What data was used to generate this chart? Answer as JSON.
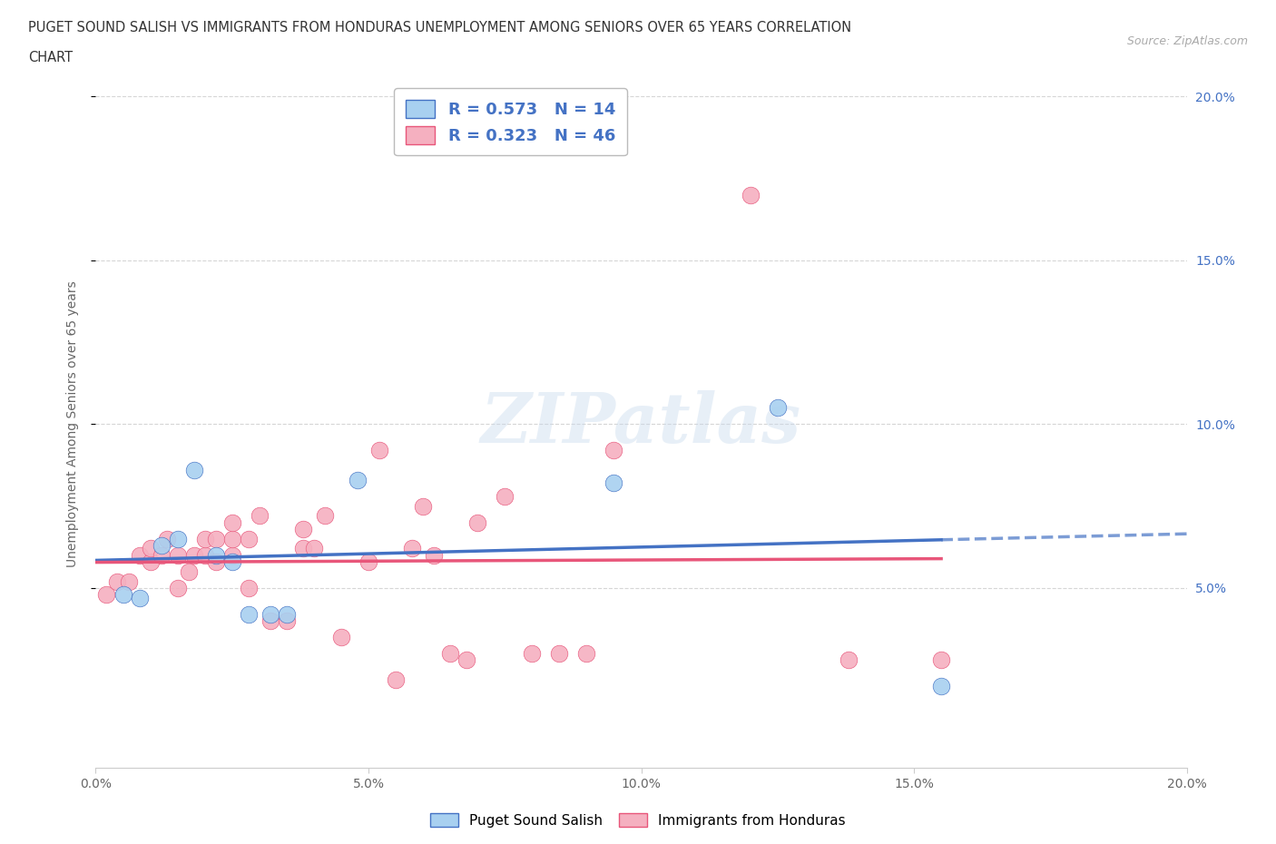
{
  "title_line1": "PUGET SOUND SALISH VS IMMIGRANTS FROM HONDURAS UNEMPLOYMENT AMONG SENIORS OVER 65 YEARS CORRELATION",
  "title_line2": "CHART",
  "source_text": "Source: ZipAtlas.com",
  "ylabel": "Unemployment Among Seniors over 65 years",
  "xlim": [
    0.0,
    0.2
  ],
  "ylim": [
    -0.005,
    0.205
  ],
  "xticks": [
    0.0,
    0.05,
    0.1,
    0.15,
    0.2
  ],
  "yticks": [
    0.05,
    0.1,
    0.15,
    0.2
  ],
  "xtick_labels": [
    "0.0%",
    "5.0%",
    "10.0%",
    "15.0%",
    "20.0%"
  ],
  "right_ytick_labels": [
    "5.0%",
    "10.0%",
    "15.0%",
    "20.0%"
  ],
  "right_yticks": [
    0.05,
    0.1,
    0.15,
    0.2
  ],
  "blue_R": "0.573",
  "blue_N": "14",
  "pink_R": "0.323",
  "pink_N": "46",
  "blue_color": "#A8D0F0",
  "pink_color": "#F5B0C0",
  "blue_line_color": "#4472C4",
  "pink_line_color": "#E8567A",
  "watermark": "ZIPatlas",
  "legend_label_blue": "Puget Sound Salish",
  "legend_label_pink": "Immigrants from Honduras",
  "blue_scatter_x": [
    0.005,
    0.008,
    0.012,
    0.015,
    0.018,
    0.022,
    0.025,
    0.028,
    0.032,
    0.035,
    0.048,
    0.095,
    0.125,
    0.155
  ],
  "blue_scatter_y": [
    0.048,
    0.047,
    0.063,
    0.065,
    0.086,
    0.06,
    0.058,
    0.042,
    0.042,
    0.042,
    0.083,
    0.082,
    0.105,
    0.02
  ],
  "pink_scatter_x": [
    0.002,
    0.004,
    0.006,
    0.008,
    0.01,
    0.01,
    0.012,
    0.013,
    0.015,
    0.015,
    0.017,
    0.018,
    0.02,
    0.02,
    0.022,
    0.022,
    0.025,
    0.025,
    0.025,
    0.028,
    0.028,
    0.03,
    0.032,
    0.035,
    0.038,
    0.038,
    0.04,
    0.042,
    0.045,
    0.05,
    0.052,
    0.055,
    0.058,
    0.06,
    0.062,
    0.065,
    0.068,
    0.07,
    0.075,
    0.08,
    0.085,
    0.09,
    0.095,
    0.12,
    0.138,
    0.155
  ],
  "pink_scatter_y": [
    0.048,
    0.052,
    0.052,
    0.06,
    0.058,
    0.062,
    0.06,
    0.065,
    0.05,
    0.06,
    0.055,
    0.06,
    0.06,
    0.065,
    0.058,
    0.065,
    0.06,
    0.065,
    0.07,
    0.05,
    0.065,
    0.072,
    0.04,
    0.04,
    0.062,
    0.068,
    0.062,
    0.072,
    0.035,
    0.058,
    0.092,
    0.022,
    0.062,
    0.075,
    0.06,
    0.03,
    0.028,
    0.07,
    0.078,
    0.03,
    0.03,
    0.03,
    0.092,
    0.17,
    0.028,
    0.028
  ],
  "background_color": "#FFFFFF",
  "grid_color": "#CCCCCC"
}
